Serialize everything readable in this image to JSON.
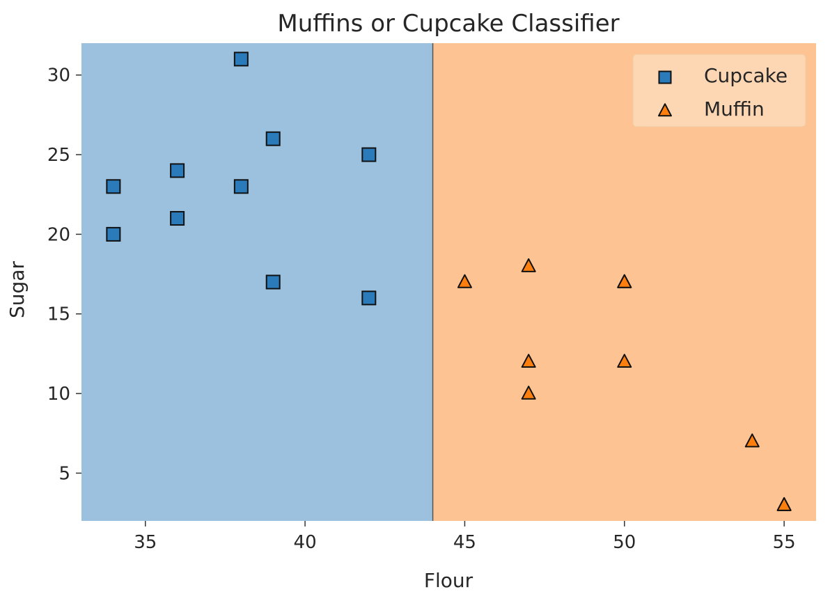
{
  "chart_data": {
    "type": "scatter",
    "title": "Muffins or Cupcake Classifier",
    "xlabel": "Flour",
    "ylabel": "Sugar",
    "xlim": [
      33,
      56
    ],
    "ylim": [
      2,
      32
    ],
    "xticks": [
      35,
      40,
      45,
      50,
      55
    ],
    "yticks": [
      5,
      10,
      15,
      20,
      25,
      30
    ],
    "grid": false,
    "legend_position": "top-right",
    "decision_boundary": {
      "x": 44,
      "left_class": "Cupcake",
      "right_class": "Muffin"
    },
    "series": [
      {
        "name": "Cupcake",
        "marker": "square",
        "color": "#2b7bba",
        "region_color": "#9bc1de",
        "points": [
          [
            34,
            23
          ],
          [
            34,
            20
          ],
          [
            36,
            24
          ],
          [
            36,
            21
          ],
          [
            38,
            31
          ],
          [
            38,
            23
          ],
          [
            39,
            26
          ],
          [
            39,
            17
          ],
          [
            42,
            25
          ],
          [
            42,
            16
          ]
        ]
      },
      {
        "name": "Muffin",
        "marker": "triangle",
        "color": "#ff7f0e",
        "region_color": "#fec392",
        "points": [
          [
            45,
            17
          ],
          [
            47,
            18
          ],
          [
            47,
            12
          ],
          [
            47,
            10
          ],
          [
            50,
            17
          ],
          [
            50,
            17
          ],
          [
            50,
            12
          ],
          [
            54,
            7
          ],
          [
            55,
            3
          ],
          [
            55,
            3
          ]
        ]
      }
    ]
  }
}
